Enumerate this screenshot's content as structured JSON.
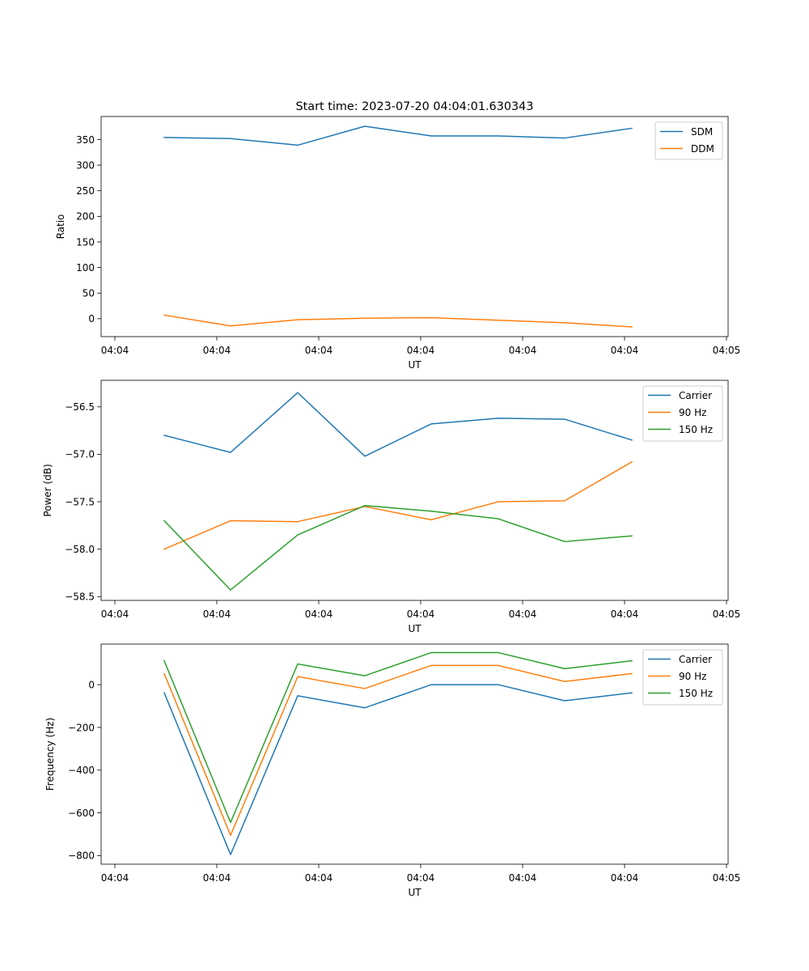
{
  "chart_data": [
    {
      "type": "line",
      "title": "Start time: 2023-07-20 04:04:01.630343",
      "xlabel": "UT",
      "ylabel": "Ratio",
      "x_tick_labels": [
        "04:04",
        "04:04",
        "04:04",
        "04:04",
        "04:04",
        "04:04",
        "04:05"
      ],
      "yticks": [
        0,
        50,
        100,
        150,
        200,
        250,
        300,
        350
      ],
      "ylim": [
        -35,
        395
      ],
      "legend_position": "top-right",
      "grid": false,
      "series": [
        {
          "name": "SDM",
          "color": "#1f77b4",
          "values": [
            354,
            352,
            339,
            376,
            357,
            357,
            353,
            372
          ]
        },
        {
          "name": "DDM",
          "color": "#ff7f0e",
          "values": [
            7,
            -14,
            -2,
            1,
            2,
            -3,
            -8,
            -16
          ]
        }
      ]
    },
    {
      "type": "line",
      "title": "",
      "xlabel": "UT",
      "ylabel": "Power (dB)",
      "x_tick_labels": [
        "04:04",
        "04:04",
        "04:04",
        "04:04",
        "04:04",
        "04:04",
        "04:05"
      ],
      "yticks": [
        -58.5,
        -58.0,
        -57.5,
        -57.0,
        -56.5
      ],
      "ytick_labels": [
        "−58.5",
        "−58.0",
        "−57.5",
        "−57.0",
        "−56.5"
      ],
      "ylim": [
        -58.54,
        -56.22
      ],
      "legend_position": "top-right",
      "grid": false,
      "series": [
        {
          "name": "Carrier",
          "color": "#1f77b4",
          "values": [
            -56.8,
            -56.98,
            -56.35,
            -57.02,
            -56.68,
            -56.62,
            -56.63,
            -56.85
          ]
        },
        {
          "name": "90 Hz",
          "color": "#ff7f0e",
          "values": [
            -58.0,
            -57.7,
            -57.71,
            -57.55,
            -57.69,
            -57.5,
            -57.49,
            -57.08
          ]
        },
        {
          "name": "150 Hz",
          "color": "#2ca02c",
          "values": [
            -57.7,
            -58.43,
            -57.85,
            -57.54,
            -57.6,
            -57.68,
            -57.92,
            -57.86
          ]
        }
      ]
    },
    {
      "type": "line",
      "title": "",
      "xlabel": "UT",
      "ylabel": "Frequency (Hz)",
      "x_tick_labels": [
        "04:04",
        "04:04",
        "04:04",
        "04:04",
        "04:04",
        "04:04",
        "04:05"
      ],
      "yticks": [
        -800,
        -600,
        -400,
        -200,
        0
      ],
      "ytick_labels": [
        "−800",
        "−600",
        "−400",
        "−200",
        "0"
      ],
      "ylim": [
        -840,
        190
      ],
      "legend_position": "top-right",
      "grid": false,
      "series": [
        {
          "name": "Carrier",
          "color": "#1f77b4",
          "values": [
            -38,
            -795,
            -52,
            -108,
            0,
            0,
            -75,
            -38
          ]
        },
        {
          "name": "90 Hz",
          "color": "#ff7f0e",
          "values": [
            52,
            -705,
            38,
            -18,
            90,
            90,
            15,
            52
          ]
        },
        {
          "name": "150 Hz",
          "color": "#2ca02c",
          "values": [
            112,
            -645,
            97,
            42,
            150,
            150,
            75,
            112
          ]
        }
      ]
    }
  ]
}
